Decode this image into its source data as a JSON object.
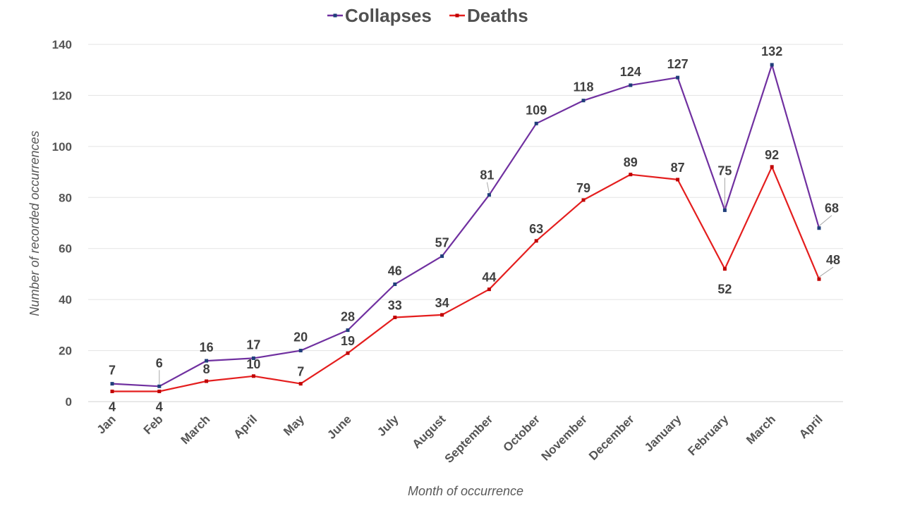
{
  "chart_data": {
    "type": "line",
    "title": "",
    "xlabel": "Month of occurrence",
    "ylabel": "Number of recorded occurrences",
    "ylim": [
      0,
      140
    ],
    "yticks": [
      0,
      20,
      40,
      60,
      80,
      100,
      120,
      140
    ],
    "grid": true,
    "legend_position": "top-center",
    "categories": [
      "Jan",
      "Feb",
      "March",
      "April",
      "May",
      "June",
      "July",
      "August",
      "September",
      "October",
      "November",
      "December",
      "January",
      "February",
      "March",
      "April"
    ],
    "series": [
      {
        "name": "Collapses",
        "color": "#7030A0",
        "marker_color": "#1F3E7A",
        "values": [
          7,
          6,
          16,
          17,
          20,
          28,
          46,
          57,
          81,
          109,
          118,
          124,
          127,
          75,
          132,
          68
        ]
      },
      {
        "name": "Deaths",
        "color": "#E41E1E",
        "marker_color": "#C00000",
        "values": [
          4,
          4,
          8,
          10,
          7,
          19,
          33,
          34,
          44,
          63,
          79,
          89,
          87,
          52,
          92,
          48
        ]
      }
    ]
  }
}
